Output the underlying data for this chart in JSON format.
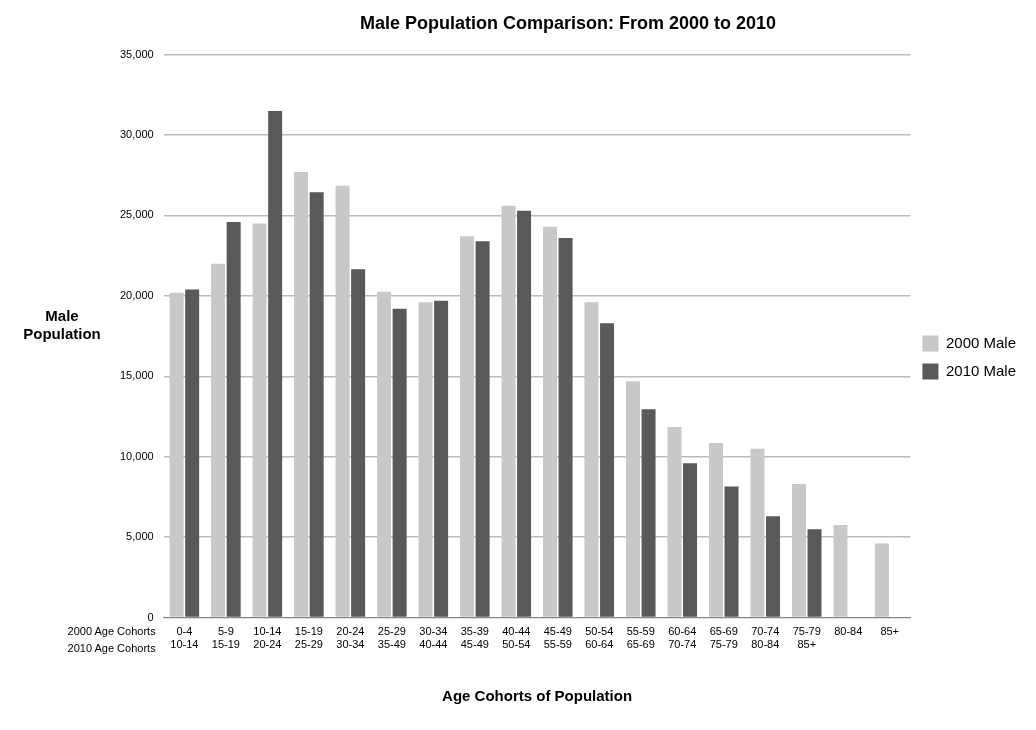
{
  "chart_data": {
    "type": "bar",
    "title": "Male Population Comparison: From 2000 to 2010",
    "xlabel": "Age Cohorts of Population",
    "ylabel": "Male\nPopulation",
    "categories": [
      "0-4\n10-14",
      "5-9\n15-19",
      "10-14\n20-24",
      "15-19\n25-29",
      "20-24\n30-34",
      "25-29\n35-49",
      "30-34\n40-44",
      "35-39\n45-49",
      "40-44\n50-54",
      "45-49\n55-59",
      "50-54\n60-64",
      "55-59\n65-69",
      "60-64\n70-74",
      "65-69\n75-79",
      "70-74\n80-84",
      "75-79\n85+",
      "80-84",
      "85+"
    ],
    "series": [
      {
        "name": "2000 Male",
        "color": "#c8c8c8",
        "values": [
          20200,
          22000,
          24500,
          27700,
          26850,
          20250,
          19600,
          23700,
          25600,
          24300,
          19600,
          14700,
          11850,
          10850,
          10500,
          8300,
          5750,
          4600
        ]
      },
      {
        "name": "2010 Male",
        "color": "#595959",
        "values": [
          20400,
          24600,
          31500,
          26450,
          21650,
          19200,
          19700,
          23400,
          25300,
          23600,
          18300,
          12950,
          9600,
          8150,
          6300,
          5500,
          null,
          null
        ]
      }
    ],
    "ylim": [
      0,
      35000
    ],
    "yticks": [
      0,
      {
        "value": 5000,
        "label": "5,000"
      },
      {
        "value": 10000,
        "label": "10,000"
      },
      {
        "value": 15000,
        "label": "15,000"
      },
      {
        "value": 20000,
        "label": "20,000"
      },
      {
        "value": 25000,
        "label": "25,000"
      },
      {
        "value": 30000,
        "label": "30,000"
      },
      {
        "value": 35000,
        "label": "35,000"
      }
    ],
    "grid": "y",
    "legend": "right",
    "annotations": [
      "2000 Age Cohorts",
      "2010 Age Cohorts"
    ]
  }
}
